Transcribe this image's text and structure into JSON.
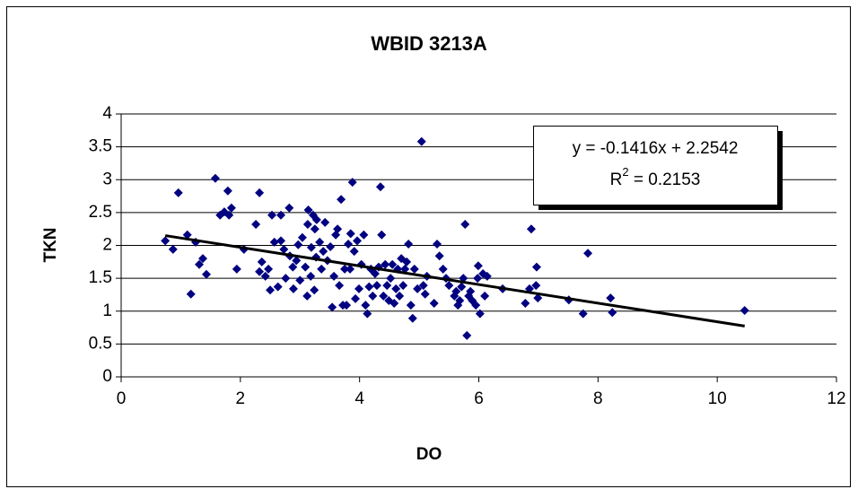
{
  "chart_data": {
    "type": "scatter",
    "title": "WBID 3213A",
    "x_label": "DO",
    "y_label": "TKN",
    "color": "#000080",
    "grid": true,
    "xlim": [
      0,
      12
    ],
    "xticks": [
      0,
      2,
      4,
      6,
      8,
      10,
      12
    ],
    "ylim": [
      0,
      4
    ],
    "yticks": [
      0,
      0.5,
      1,
      1.5,
      2,
      2.5,
      3,
      3.5,
      4
    ],
    "x": [
      0.74,
      0.87,
      0.96,
      1.11,
      1.17,
      1.25,
      1.31,
      1.37,
      1.43,
      1.58,
      1.66,
      1.73,
      1.79,
      1.85,
      1.81,
      1.94,
      2.06,
      2.26,
      2.32,
      2.32,
      2.36,
      2.42,
      2.47,
      2.5,
      2.53,
      2.57,
      2.63,
      2.68,
      2.68,
      2.73,
      2.76,
      2.82,
      2.83,
      2.88,
      2.89,
      2.94,
      2.97,
      3.0,
      3.04,
      3.09,
      3.12,
      3.13,
      3.14,
      3.18,
      3.19,
      3.22,
      3.24,
      3.25,
      3.27,
      3.28,
      3.33,
      3.36,
      3.39,
      3.42,
      3.46,
      3.51,
      3.54,
      3.57,
      3.6,
      3.63,
      3.66,
      3.69,
      3.72,
      3.75,
      3.78,
      3.81,
      3.84,
      3.85,
      3.88,
      3.91,
      3.93,
      3.96,
      3.99,
      4.03,
      4.07,
      4.1,
      4.13,
      4.16,
      4.19,
      4.22,
      4.26,
      4.29,
      4.32,
      4.35,
      4.37,
      4.4,
      4.43,
      4.46,
      4.49,
      4.52,
      4.55,
      4.58,
      4.61,
      4.64,
      4.67,
      4.7,
      4.73,
      4.76,
      4.79,
      4.82,
      4.86,
      4.89,
      4.92,
      4.97,
      5.04,
      5.07,
      5.1,
      5.13,
      5.25,
      5.3,
      5.34,
      5.4,
      5.45,
      5.5,
      5.59,
      5.62,
      5.65,
      5.68,
      5.71,
      5.74,
      5.77,
      5.8,
      5.83,
      5.86,
      5.89,
      5.95,
      5.98,
      5.99,
      6.02,
      6.07,
      6.1,
      6.14,
      6.4,
      6.78,
      6.85,
      6.88,
      6.96,
      6.97,
      6.99,
      7.51,
      7.75,
      7.83,
      8.21,
      8.24,
      10.46
    ],
    "values": [
      2.07,
      1.94,
      2.8,
      2.16,
      1.26,
      2.05,
      1.71,
      1.8,
      1.56,
      3.02,
      2.46,
      2.51,
      2.83,
      2.57,
      2.46,
      1.64,
      1.94,
      2.32,
      2.8,
      1.6,
      1.75,
      1.53,
      1.64,
      1.32,
      2.46,
      2.05,
      1.37,
      2.46,
      2.07,
      1.94,
      1.5,
      2.57,
      1.84,
      1.67,
      1.34,
      1.77,
      2.01,
      1.47,
      2.12,
      1.67,
      1.23,
      2.32,
      2.54,
      1.53,
      1.97,
      2.46,
      1.32,
      2.25,
      1.82,
      2.39,
      2.05,
      1.64,
      1.91,
      2.35,
      1.77,
      1.98,
      1.06,
      1.53,
      2.16,
      2.25,
      1.39,
      2.7,
      1.09,
      1.64,
      1.09,
      2.02,
      1.64,
      2.18,
      2.96,
      1.91,
      1.19,
      2.07,
      1.34,
      1.71,
      2.16,
      1.09,
      0.96,
      1.37,
      1.64,
      1.23,
      1.57,
      1.39,
      1.67,
      2.89,
      2.16,
      1.23,
      1.71,
      1.39,
      1.16,
      1.5,
      1.71,
      1.12,
      1.34,
      1.64,
      1.23,
      1.8,
      1.39,
      1.64,
      1.75,
      2.02,
      1.09,
      0.89,
      1.64,
      1.34,
      3.58,
      1.39,
      1.26,
      1.53,
      1.12,
      2.02,
      1.84,
      1.64,
      1.5,
      1.39,
      1.23,
      1.3,
      1.09,
      1.16,
      1.37,
      1.5,
      2.32,
      0.63,
      1.23,
      1.3,
      1.16,
      1.09,
      1.5,
      1.69,
      0.96,
      1.57,
      1.23,
      1.53,
      1.34,
      1.12,
      1.34,
      2.25,
      1.39,
      1.67,
      1.2,
      1.17,
      0.96,
      1.88,
      1.2,
      0.98,
      1.01
    ],
    "trendline": {
      "slope": -0.1416,
      "intercept": 2.2542,
      "color": "#000000"
    },
    "equation": {
      "line1": "y = -0.1416x + 2.2542",
      "r": "R",
      "sup": "2",
      "rest": " = 0.2153"
    }
  }
}
